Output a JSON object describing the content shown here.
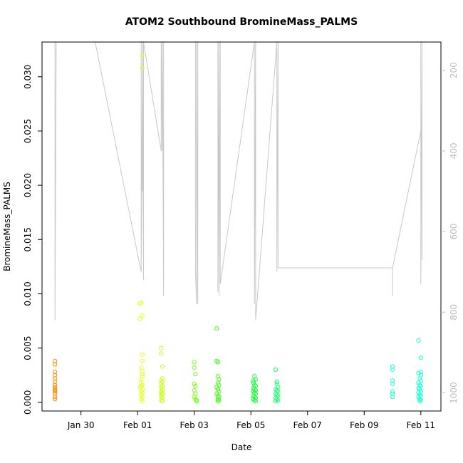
{
  "chart_data": {
    "type": "scatter",
    "title": "ATOM2 Southbound BromineMass_PALMS",
    "xlabel": "Date",
    "ylabel": "BromineMass_PALMS",
    "x_type": "date",
    "x_tick_labels": [
      "Jan 30",
      "Feb 01",
      "Feb 03",
      "Feb 05",
      "Feb 07",
      "Feb 09",
      "Feb 11"
    ],
    "x_tick_dates": [
      "2017-01-30",
      "2017-02-01",
      "2017-02-03",
      "2017-02-05",
      "2017-02-07",
      "2017-02-09",
      "2017-02-11"
    ],
    "xlim": [
      "2017-01-28T15:00",
      "2017-02-11T17:00"
    ],
    "ylim": [
      -0.0008,
      0.0332
    ],
    "y_ticks": [
      0.0,
      0.005,
      0.01,
      0.015,
      0.02,
      0.025,
      0.03
    ],
    "y_tick_labels": [
      "0.000",
      "0.005",
      "0.010",
      "0.015",
      "0.020",
      "0.025",
      "0.030"
    ],
    "y2_label": "",
    "y2_reversed": true,
    "y2_ticks": [
      200,
      400,
      600,
      800,
      1000
    ],
    "y2_tick_labels": [
      "200",
      "400",
      "600",
      "800",
      "1000"
    ],
    "y2lim": [
      1045,
      130
    ],
    "grid": false,
    "colors": {
      "points_by_flight": [
        "#ff8c00",
        "#e4ff1a",
        "#c8ff1a",
        "#74ff1a",
        "#42ff1a",
        "#1aff3a",
        "#1aff6b",
        "#1affd2"
      ],
      "altitude_line": "#c8c8c8"
    },
    "series": [
      {
        "marker": "open-circle",
        "color": "#ff8c00",
        "x": [
          "2017-01-29T02:00",
          "2017-01-29T02:00",
          "2017-01-29T02:00",
          "2017-01-29T02:00",
          "2017-01-29T02:00",
          "2017-01-29T02:00",
          "2017-01-29T02:00",
          "2017-01-29T02:00",
          "2017-01-29T02:00",
          "2017-01-29T02:00",
          "2017-01-29T02:00",
          "2017-01-29T02:00",
          "2017-01-29T02:00",
          "2017-01-29T02:00"
        ],
        "y": [
          0.0038,
          0.0035,
          0.0028,
          0.0025,
          0.0022,
          0.0019,
          0.0016,
          0.0014,
          0.0012,
          0.0011,
          0.001,
          0.0008,
          0.0005,
          0.0003
        ]
      },
      {
        "marker": "open-circle",
        "color": "#e4ff1a",
        "x": [
          "2017-02-01T02:00",
          "2017-02-01T02:00",
          "2017-02-01T03:00",
          "2017-02-01T04:00",
          "2017-02-01T04:00",
          "2017-02-01T04:00",
          "2017-02-01T03:00",
          "2017-02-01T04:00",
          "2017-02-01T04:00",
          "2017-02-01T04:00",
          "2017-02-01T03:00",
          "2017-02-01T03:00",
          "2017-02-01T04:00",
          "2017-02-01T03:00",
          "2017-02-01T02:00",
          "2017-02-01T04:00",
          "2017-02-01T03:00",
          "2017-02-01T04:00",
          "2017-02-01T03:00",
          "2017-02-01T04:00",
          "2017-02-01T03:00",
          "2017-02-01T04:00"
        ],
        "y": [
          0.0091,
          0.0077,
          0.0092,
          0.008,
          0.0044,
          0.0038,
          0.0032,
          0.0029,
          0.0026,
          0.0024,
          0.0021,
          0.0018,
          0.0016,
          0.0015,
          0.0014,
          0.0012,
          0.001,
          0.0009,
          0.0007,
          0.0005,
          0.0003,
          0.0001
        ]
      },
      {
        "marker": "open-circle",
        "color": "#e4ff1a",
        "x": [
          "2017-02-01T04:00",
          "2017-02-01T04:00"
        ],
        "y": [
          0.0319,
          0.0308
        ]
      },
      {
        "marker": "open-circle",
        "color": "#c8ff1a",
        "x": [
          "2017-02-01T20:00",
          "2017-02-01T20:00",
          "2017-02-01T21:00",
          "2017-02-01T21:00",
          "2017-02-01T20:00",
          "2017-02-01T21:00",
          "2017-02-01T20:00",
          "2017-02-01T21:00",
          "2017-02-01T20:00",
          "2017-02-01T21:00",
          "2017-02-01T20:00",
          "2017-02-01T21:00",
          "2017-02-01T20:00",
          "2017-02-01T21:00",
          "2017-02-01T20:00",
          "2017-02-01T21:00",
          "2017-02-01T20:00",
          "2017-02-01T21:00"
        ],
        "y": [
          0.005,
          0.0045,
          0.0033,
          0.0022,
          0.002,
          0.0019,
          0.0017,
          0.0015,
          0.0014,
          0.0012,
          0.001,
          0.0009,
          0.0008,
          0.0007,
          0.0005,
          0.0004,
          0.0002,
          0.0001
        ]
      },
      {
        "marker": "open-circle",
        "color": "#74ff1a",
        "x": [
          "2017-02-03T00:00",
          "2017-02-03T00:00",
          "2017-02-03T01:00",
          "2017-02-03T00:00",
          "2017-02-03T01:00",
          "2017-02-03T00:00",
          "2017-02-03T01:00",
          "2017-02-03T00:00",
          "2017-02-03T01:00",
          "2017-02-03T02:00",
          "2017-02-03T02:00"
        ],
        "y": [
          0.0037,
          0.0032,
          0.0026,
          0.0017,
          0.0015,
          0.0011,
          0.0008,
          0.0005,
          0.0003,
          0.0002,
          0.0001
        ]
      },
      {
        "marker": "open-circle",
        "color": "#42ff1a",
        "x": [
          "2017-02-03T19:00",
          "2017-02-03T19:00",
          "2017-02-03T20:00",
          "2017-02-03T20:00",
          "2017-02-03T21:00",
          "2017-02-03T20:00",
          "2017-02-03T21:00",
          "2017-02-03T19:00",
          "2017-02-03T20:00",
          "2017-02-03T21:00",
          "2017-02-03T19:00",
          "2017-02-03T20:00",
          "2017-02-03T21:00",
          "2017-02-03T20:00",
          "2017-02-03T21:00",
          "2017-02-03T20:00"
        ],
        "y": [
          0.0068,
          0.0038,
          0.0037,
          0.0024,
          0.0021,
          0.0018,
          0.0016,
          0.0014,
          0.0012,
          0.001,
          0.0008,
          0.0006,
          0.0005,
          0.0003,
          0.0002,
          0.0001
        ]
      },
      {
        "marker": "open-circle",
        "color": "#1aff3a",
        "x": [
          "2017-02-05T02:00",
          "2017-02-05T03:00",
          "2017-02-05T04:00",
          "2017-02-05T02:00",
          "2017-02-05T03:00",
          "2017-02-05T04:00",
          "2017-02-05T02:00",
          "2017-02-05T03:00",
          "2017-02-05T04:00",
          "2017-02-05T02:00",
          "2017-02-05T03:00",
          "2017-02-05T04:00",
          "2017-02-05T02:00",
          "2017-02-05T03:00",
          "2017-02-05T04:00",
          "2017-02-05T02:00",
          "2017-02-05T03:00",
          "2017-02-05T04:00"
        ],
        "y": [
          0.002,
          0.0024,
          0.0021,
          0.0018,
          0.0016,
          0.0015,
          0.0013,
          0.0012,
          0.0011,
          0.001,
          0.0009,
          0.0008,
          0.0006,
          0.0005,
          0.0004,
          0.0003,
          0.0002,
          0.0001
        ]
      },
      {
        "marker": "open-circle",
        "color": "#1aff6b",
        "x": [
          "2017-02-05T21:00",
          "2017-02-05T22:00",
          "2017-02-05T22:00",
          "2017-02-05T23:00",
          "2017-02-05T21:00",
          "2017-02-05T22:00",
          "2017-02-05T23:00",
          "2017-02-05T21:00",
          "2017-02-05T22:00",
          "2017-02-05T23:00",
          "2017-02-05T21:00",
          "2017-02-05T22:00",
          "2017-02-05T23:00",
          "2017-02-05T21:00"
        ],
        "y": [
          0.003,
          0.0019,
          0.0017,
          0.0014,
          0.0012,
          0.0011,
          0.001,
          0.0008,
          0.0007,
          0.0006,
          0.0004,
          0.0003,
          0.0002,
          0.0001
        ]
      },
      {
        "marker": "open-circle",
        "color": "#1affd2",
        "x": [
          "2017-02-10T00:00",
          "2017-02-10T00:00",
          "2017-02-10T00:00",
          "2017-02-10T00:00",
          "2017-02-10T00:00",
          "2017-02-10T00:00",
          "2017-02-10T00:00"
        ],
        "y": [
          0.0033,
          0.003,
          0.002,
          0.0017,
          0.001,
          0.0008,
          0.0005
        ]
      },
      {
        "marker": "open-circle",
        "color": "#1affd2",
        "x": [
          "2017-02-10T22:00",
          "2017-02-11T00:00",
          "2017-02-11T00:00",
          "2017-02-10T22:00",
          "2017-02-11T00:00",
          "2017-02-10T23:00",
          "2017-02-11T00:00",
          "2017-02-10T22:00",
          "2017-02-10T23:00",
          "2017-02-11T00:00",
          "2017-02-10T22:00",
          "2017-02-10T23:00",
          "2017-02-11T00:00",
          "2017-02-10T22:00",
          "2017-02-10T23:00",
          "2017-02-11T00:00",
          "2017-02-10T22:00",
          "2017-02-10T23:00",
          "2017-02-11T00:00",
          "2017-02-10T23:00"
        ],
        "y": [
          0.0057,
          0.0041,
          0.0028,
          0.0027,
          0.0025,
          0.0022,
          0.002,
          0.0018,
          0.0016,
          0.0015,
          0.0013,
          0.0012,
          0.001,
          0.0009,
          0.0007,
          0.0006,
          0.0005,
          0.0003,
          0.0002,
          0.0001
        ]
      }
    ],
    "altitude_profile": {
      "axis": "right",
      "color": "#c8c8c8",
      "x": [
        "2017-01-29T02:00",
        "2017-01-29T02:00",
        "2017-01-29T03:00",
        "2017-01-29T03:00",
        "2017-01-30T12:00",
        "2017-02-01T03:00",
        "2017-02-01T03:00",
        "2017-02-01T03:00",
        "2017-02-01T04:00",
        "2017-02-01T04:00",
        "2017-02-01T04:00",
        "2017-02-01T05:00",
        "2017-02-01T05:00",
        "2017-02-01T20:00",
        "2017-02-01T20:00",
        "2017-02-01T21:00",
        "2017-02-01T21:00",
        "2017-02-01T22:00",
        "2017-02-01T22:00",
        "2017-02-03T01:00",
        "2017-02-03T01:00",
        "2017-02-03T02:00",
        "2017-02-03T02:00",
        "2017-02-03T03:00",
        "2017-02-03T03:00",
        "2017-02-03T20:00",
        "2017-02-03T20:00",
        "2017-02-03T21:00",
        "2017-02-03T21:00",
        "2017-02-03T22:00",
        "2017-02-03T22:00",
        "2017-02-05T03:00",
        "2017-02-05T03:00",
        "2017-02-05T04:00",
        "2017-02-05T04:00",
        "2017-02-05T22:00",
        "2017-02-05T22:00",
        "2017-02-05T23:00",
        "2017-02-05T23:00",
        "2017-02-10T00:00",
        "2017-02-10T00:00",
        "2017-02-10T00:00",
        "2017-02-11T00:00",
        "2017-02-11T00:00",
        "2017-02-11T00:00",
        "2017-02-11T01:00",
        "2017-02-11T01:00"
      ],
      "y": [
        130,
        820,
        130,
        130,
        130,
        700,
        130,
        700,
        200,
        500,
        130,
        720,
        130,
        400,
        130,
        400,
        130,
        760,
        130,
        130,
        700,
        780,
        130,
        780,
        130,
        130,
        750,
        130,
        760,
        130,
        730,
        130,
        780,
        130,
        820,
        130,
        700,
        130,
        690,
        690,
        760,
        690,
        350,
        130,
        730,
        130,
        670
      ]
    }
  }
}
